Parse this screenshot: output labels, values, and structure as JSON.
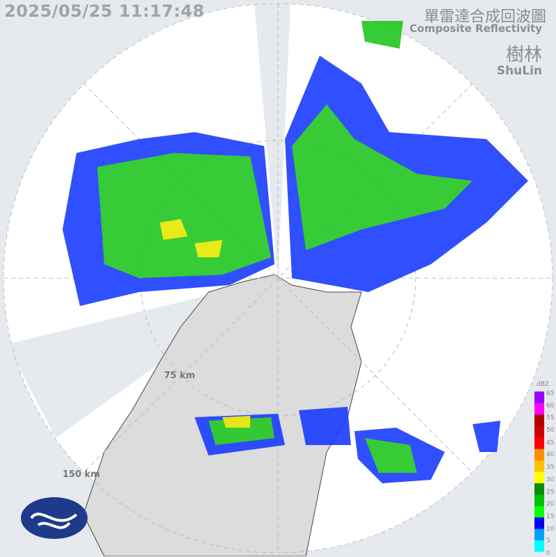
{
  "timestamp": "2025/05/25 11:17:48",
  "title_zh": "單雷達合成回波圖",
  "title_en": "Composite Reflectivity",
  "station_zh": "樹林",
  "station_en": "ShuLin",
  "range_rings": [
    "75 km",
    "150 km"
  ],
  "legend": {
    "unit": "dBZ",
    "ticks": [
      "65",
      "60",
      "55",
      "50",
      "45",
      "40",
      "35",
      "30",
      "25",
      "20",
      "15",
      "10",
      "5",
      "0"
    ],
    "colors": [
      "#00ffff",
      "#00a0ff",
      "#0000ff",
      "#00ff00",
      "#00c000",
      "#009000",
      "#ffff00",
      "#ffc000",
      "#ff9000",
      "#ff0000",
      "#d00000",
      "#b00000",
      "#ff00ff",
      "#9900ff"
    ]
  },
  "logo": "CWA"
}
